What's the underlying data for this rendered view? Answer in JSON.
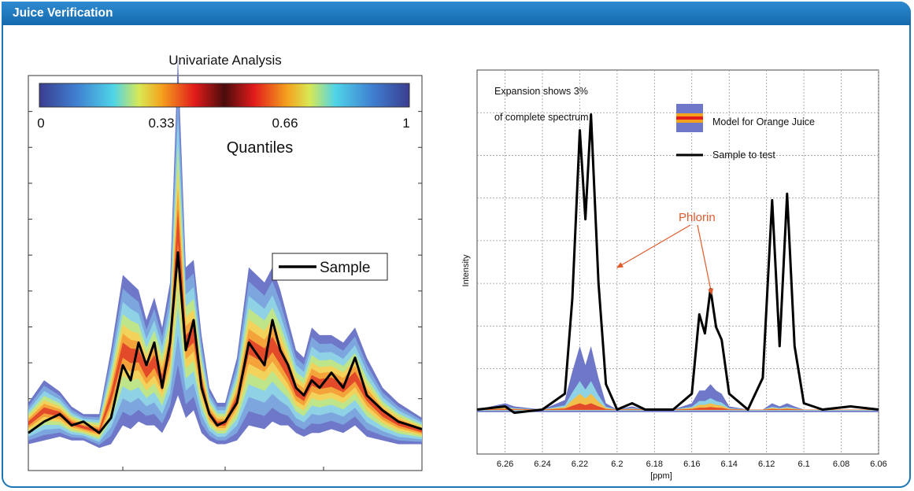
{
  "header": {
    "title": "Juice Verification"
  },
  "colors": {
    "header_bg": "#1b76b5",
    "sample_line": "#000000",
    "phlorin_annotation": "#e05a2b",
    "model_band": "#6f78c8"
  },
  "chart_data": [
    {
      "type": "area",
      "title": "Univariate Analysis",
      "xlabel": "",
      "ylabel": "",
      "colorbar": {
        "label": "Quantiles",
        "ticks": [
          "0",
          "0.33",
          "0.66",
          "1"
        ],
        "colormap": "blue-cyan-yellow-red-darkred-red-yellow-cyan-blue"
      },
      "legend": {
        "entries": [
          "Sample"
        ],
        "placement": "center-right"
      },
      "x": [
        0,
        0.04,
        0.08,
        0.11,
        0.14,
        0.18,
        0.21,
        0.24,
        0.26,
        0.28,
        0.3,
        0.32,
        0.34,
        0.36,
        0.38,
        0.4,
        0.42,
        0.44,
        0.46,
        0.48,
        0.5,
        0.53,
        0.56,
        0.6,
        0.62,
        0.64,
        0.66,
        0.68,
        0.7,
        0.72,
        0.74,
        0.77,
        0.8,
        0.83,
        0.86,
        0.9,
        0.94,
        0.97,
        1.0
      ],
      "series": [
        {
          "name": "Sample",
          "values": [
            0.0,
            0.03,
            0.05,
            0.02,
            0.03,
            0.0,
            0.04,
            0.18,
            0.14,
            0.24,
            0.18,
            0.24,
            0.12,
            0.24,
            0.48,
            0.22,
            0.3,
            0.12,
            0.05,
            0.02,
            0.03,
            0.08,
            0.24,
            0.18,
            0.3,
            0.22,
            0.18,
            0.12,
            0.1,
            0.14,
            0.12,
            0.16,
            0.12,
            0.2,
            0.1,
            0.06,
            0.03,
            0.02,
            0.01
          ]
        },
        {
          "name": "",
          "values": [
            0.08,
            0.14,
            0.11,
            0.07,
            0.05,
            0.05,
            0.22,
            0.42,
            0.4,
            0.38,
            0.3,
            0.36,
            0.28,
            0.4,
            1.0,
            0.44,
            0.46,
            0.26,
            0.12,
            0.08,
            0.08,
            0.2,
            0.44,
            0.4,
            0.44,
            0.38,
            0.3,
            0.22,
            0.2,
            0.28,
            0.26,
            0.26,
            0.24,
            0.28,
            0.2,
            0.12,
            0.08,
            0.06,
            0.04
          ]
        },
        {
          "name": "",
          "values": [
            -0.03,
            -0.02,
            -0.01,
            -0.02,
            -0.02,
            -0.04,
            -0.03,
            0.02,
            0.01,
            0.03,
            0.02,
            0.02,
            0.0,
            0.04,
            0.1,
            0.04,
            0.06,
            0.0,
            -0.02,
            -0.03,
            -0.03,
            -0.02,
            0.02,
            0.01,
            0.03,
            0.02,
            0.02,
            0.0,
            -0.01,
            0.0,
            0.0,
            0.01,
            0.0,
            0.02,
            -0.01,
            -0.02,
            -0.03,
            -0.03,
            -0.03
          ]
        }
      ],
      "ylim": [
        -0.1,
        0.95
      ],
      "grid": false
    },
    {
      "type": "line",
      "title": "",
      "xlabel": "[ppm]",
      "ylabel": "Intensity",
      "annotations": [
        "Expansion shows 3%",
        "of complete spectrum",
        "Phlorin"
      ],
      "legend": {
        "entries": [
          "Model for Orange Juice",
          "Sample to test"
        ],
        "placement": "top-right"
      },
      "xlim": [
        6.275,
        6.06
      ],
      "x_reversed": true,
      "xticks": [
        "6.26",
        "6.24",
        "6.22",
        "6.2",
        "6.18",
        "6.16",
        "6.14",
        "6.12",
        "6.1",
        "6.08",
        "6.06"
      ],
      "grid": true,
      "x": [
        6.275,
        6.26,
        6.255,
        6.24,
        6.228,
        6.224,
        6.22,
        6.217,
        6.214,
        6.21,
        6.206,
        6.2,
        6.192,
        6.185,
        6.17,
        6.16,
        6.156,
        6.153,
        6.15,
        6.147,
        6.144,
        6.14,
        6.13,
        6.122,
        6.117,
        6.113,
        6.109,
        6.105,
        6.1,
        6.09,
        6.075,
        6.06
      ],
      "series": [
        {
          "name": "Sample to test",
          "values": [
            0.0,
            0.01,
            -0.01,
            0.0,
            0.05,
            0.35,
            0.88,
            0.6,
            0.93,
            0.4,
            0.08,
            0.0,
            0.02,
            0.0,
            0.0,
            0.05,
            0.3,
            0.24,
            0.38,
            0.26,
            0.22,
            0.05,
            0.0,
            0.1,
            0.66,
            0.2,
            0.68,
            0.2,
            0.02,
            0.0,
            0.01,
            0.0
          ]
        },
        {
          "name": "Model for Orange Juice",
          "values": [
            0.0,
            0.02,
            0.01,
            0.0,
            0.03,
            0.12,
            0.2,
            0.14,
            0.2,
            0.1,
            0.02,
            0.0,
            0.01,
            0.0,
            0.0,
            0.02,
            0.06,
            0.06,
            0.08,
            0.06,
            0.05,
            0.01,
            0.0,
            0.0,
            0.02,
            0.01,
            0.02,
            0.01,
            0.0,
            0.0,
            0.0,
            0.0
          ]
        }
      ],
      "ylim": [
        -0.14,
        1.07
      ]
    }
  ]
}
